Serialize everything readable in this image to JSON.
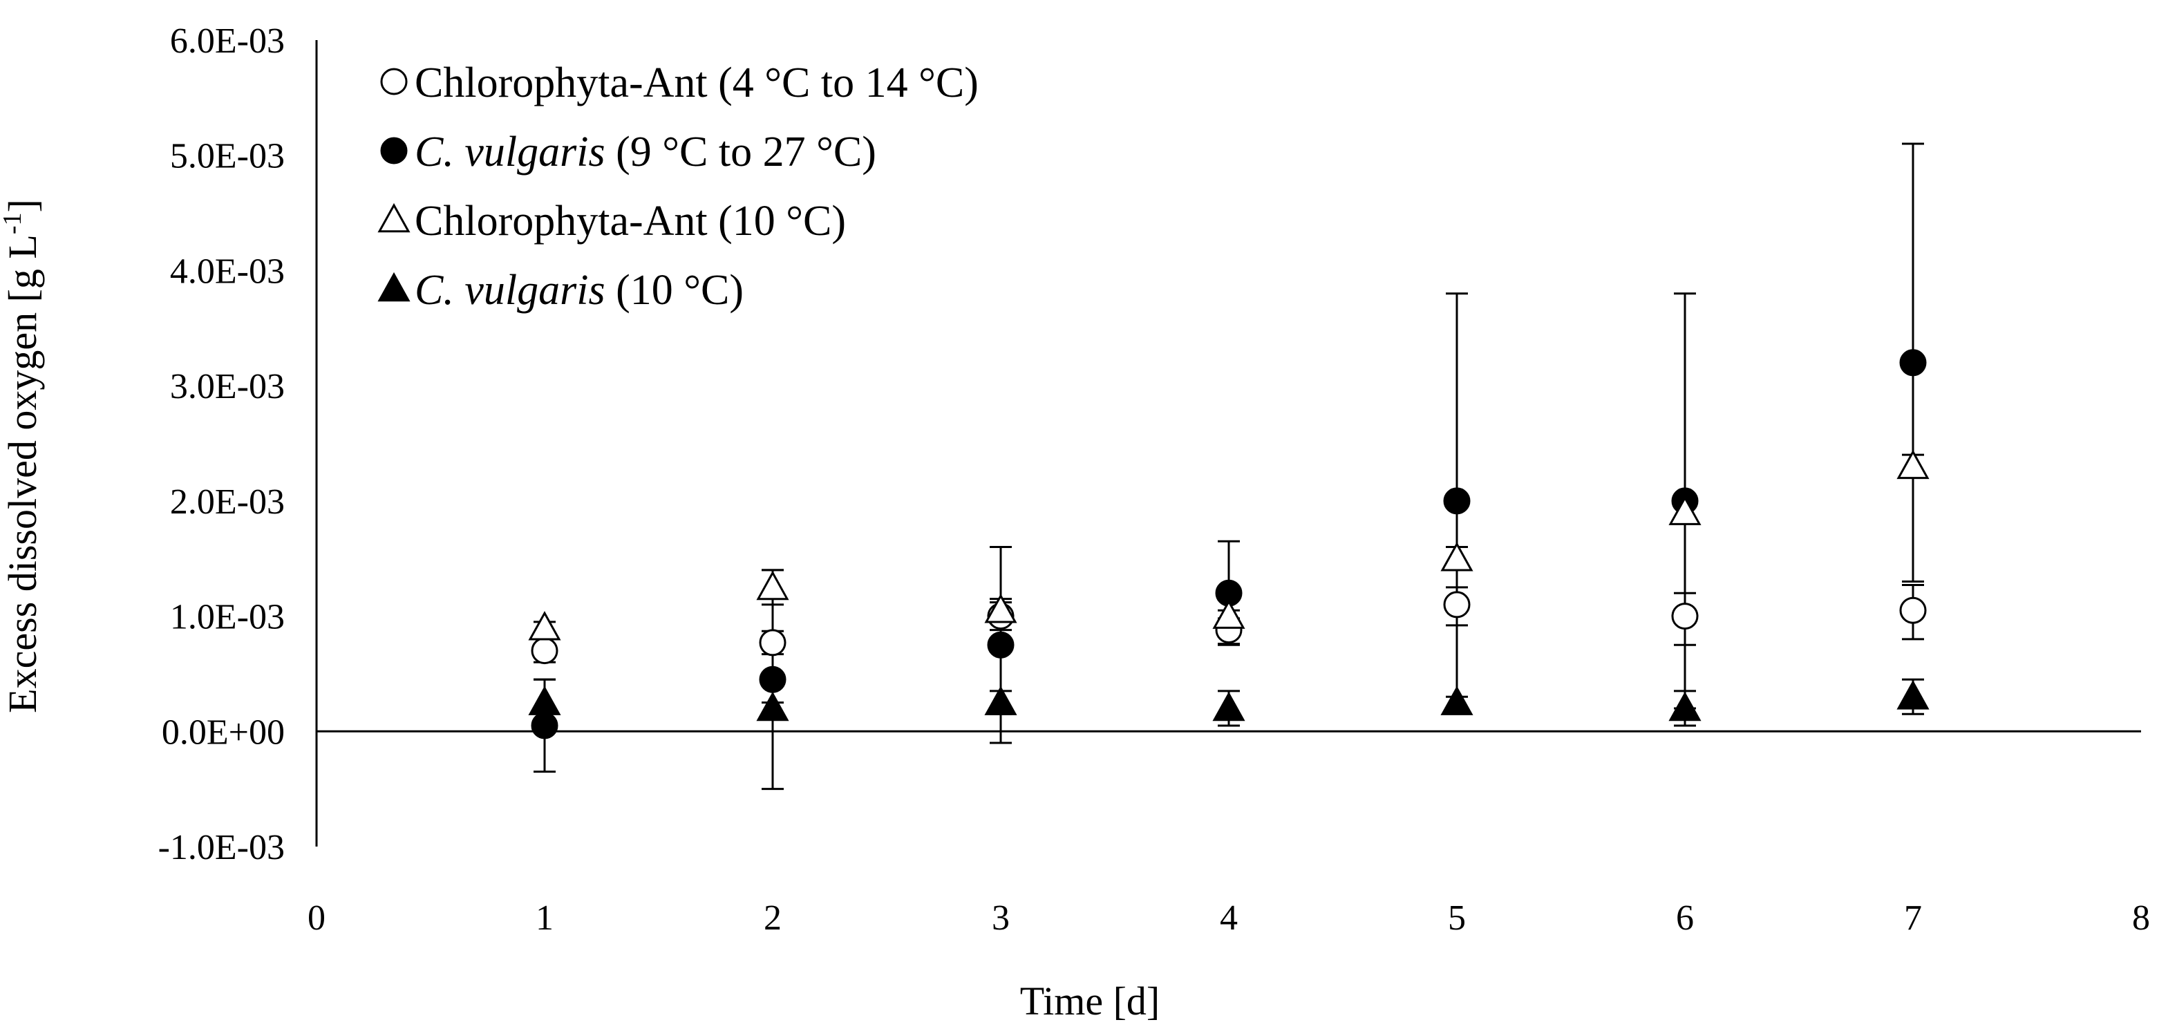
{
  "chart_data": {
    "type": "scatter",
    "xlabel": "Time [d]",
    "ylabel": "Excess dissolved oxygen [g L",
    "ylabel_superscript": "-1",
    "ylabel_close": "]",
    "xlim": [
      0,
      8
    ],
    "ylim": [
      -0.001,
      0.006
    ],
    "x_ticks": [
      0,
      1,
      2,
      3,
      4,
      5,
      6,
      7,
      8
    ],
    "x_tick_labels": [
      "0",
      "1",
      "2",
      "3",
      "4",
      "5",
      "6",
      "7",
      "8"
    ],
    "y_ticks": [
      -0.001,
      0,
      0.001,
      0.002,
      0.003,
      0.004,
      0.005,
      0.006
    ],
    "y_tick_labels": [
      "-1.0E-03",
      "0.0E+00",
      "1.0E-03",
      "2.0E-03",
      "3.0E-03",
      "4.0E-03",
      "5.0E-03",
      "6.0E-03"
    ],
    "grid": false,
    "legend_position": "top-left",
    "series": [
      {
        "name_parts": [
          {
            "text": "Chlorophyta-Ant (4 °C to 14 °C)",
            "italic": false
          }
        ],
        "marker": "circle-open",
        "x": [
          1,
          2,
          3,
          4,
          5,
          6,
          7
        ],
        "y": [
          0.0007,
          0.00077,
          0.001,
          0.00088,
          0.0011,
          0.001,
          0.00105
        ],
        "err_upper": [
          0.0001,
          0.0001,
          0.00012,
          0.0001,
          0.00015,
          0.0002,
          0.00022
        ],
        "err_lower": [
          0.0001,
          0.0001,
          0.00012,
          0.00012,
          0.00018,
          0.00025,
          0.00025
        ]
      },
      {
        "name_parts": [
          {
            "text": "C. vulgaris",
            "italic": true
          },
          {
            "text": " (9 °C to 27 °C)",
            "italic": false
          }
        ],
        "marker": "circle-filled",
        "x": [
          1,
          2,
          3,
          4,
          5,
          6,
          7
        ],
        "y": [
          5e-05,
          0.00045,
          0.00075,
          0.0012,
          0.002,
          0.002,
          0.0032
        ],
        "err_upper": [
          0.0004,
          0.00095,
          0.00085,
          0.00045,
          0.0018,
          0.0018,
          0.0019
        ],
        "err_lower": [
          0.0004,
          0.00095,
          0.00085,
          0.00045,
          0.0018,
          0.0018,
          0.0019
        ]
      },
      {
        "name_parts": [
          {
            "text": "Chlorophyta-Ant (10 °C)",
            "italic": false
          }
        ],
        "marker": "triangle-open",
        "x": [
          1,
          2,
          3,
          4,
          5,
          6,
          7
        ],
        "y": [
          0.0009,
          0.00125,
          0.00105,
          0.001,
          0.0015,
          0.0019,
          0.0023
        ],
        "err_upper": [
          5e-05,
          0.00015,
          0.0001,
          5e-05,
          0.0001,
          5e-05,
          0.0001
        ],
        "err_lower": [
          5e-05,
          0.00015,
          0.0001,
          5e-05,
          0.0001,
          5e-05,
          0.0001
        ]
      },
      {
        "name_parts": [
          {
            "text": "C. vulgaris",
            "italic": true
          },
          {
            "text": " (10 °C)",
            "italic": false
          }
        ],
        "marker": "triangle-filled",
        "x": [
          1,
          2,
          3,
          4,
          5,
          6,
          7
        ],
        "y": [
          0.00025,
          0.0002,
          0.00025,
          0.0002,
          0.00025,
          0.0002,
          0.0003
        ],
        "err_upper": [
          0.0002,
          5e-05,
          0.0001,
          0.00015,
          5e-05,
          0.00015,
          0.00015
        ],
        "err_lower": [
          0.0002,
          5e-05,
          0.0001,
          0.00015,
          5e-05,
          0.00015,
          0.00015
        ]
      }
    ]
  }
}
